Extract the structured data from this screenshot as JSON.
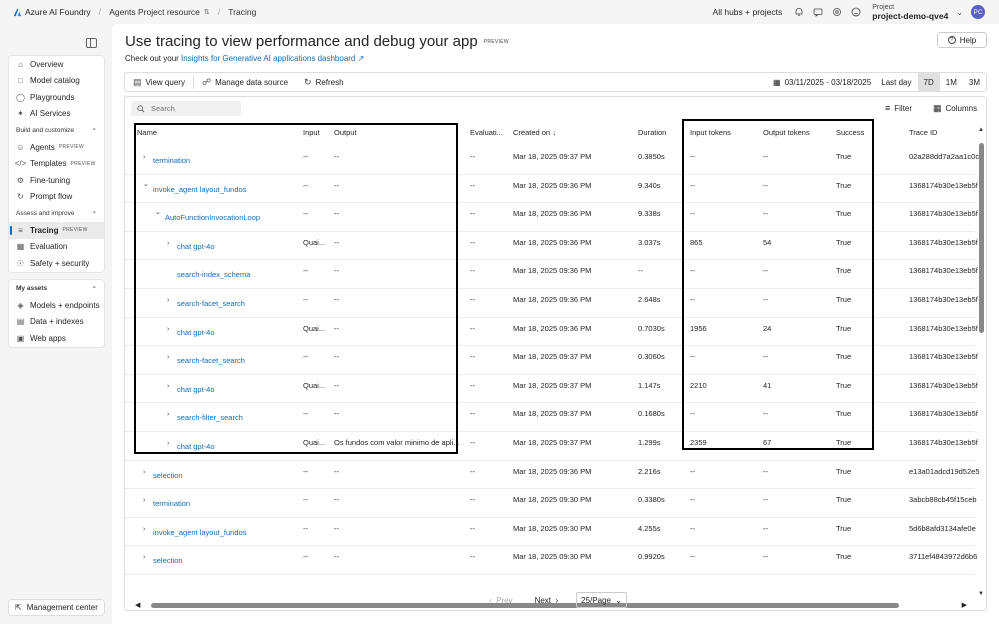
{
  "topbar": {
    "brand": "Azure AI Foundry",
    "resource": "Agents Project resource",
    "page": "Tracing",
    "hubs": "All hubs + projects",
    "project_label": "Project",
    "project_name": "project-demo-qve4",
    "avatar": "PC",
    "icons": [
      "bell-icon",
      "feedback-icon",
      "gear-icon",
      "smiley-icon"
    ]
  },
  "sidebar": {
    "top_items": [
      "Overview",
      "Model catalog",
      "Playgrounds",
      "AI Services"
    ],
    "build_header": "Build and customize",
    "build_items": [
      "Agents",
      "Templates",
      "Fine-tuning",
      "Prompt flow"
    ],
    "assess_header": "Assess and improve",
    "assess_items": [
      "Tracing",
      "Evaluation",
      "Safety + security"
    ],
    "assets_header": "My assets",
    "assets_items": [
      "Models + endpoints",
      "Data + indexes",
      "Web apps"
    ],
    "preview_badge": "PREVIEW",
    "management": "Management center"
  },
  "main": {
    "title": "Use tracing to view performance and debug your app",
    "title_badge": "PREVIEW",
    "subtitle_prefix": "Check out your",
    "subtitle_link": "Insights for Generative AI applications dashboard",
    "help": "Help"
  },
  "toolbar": {
    "view_query": "View query",
    "manage_data": "Manage data source",
    "refresh": "Refresh",
    "date_range": "03/11/2025 - 03/18/2025",
    "periods": [
      "Last day",
      "7D",
      "1M",
      "3M"
    ]
  },
  "grid": {
    "search_placeholder": "Search",
    "filter": "Filter",
    "columns_btn": "Columns",
    "headers": [
      "Name",
      "Input",
      "Output",
      "Evaluati...",
      "Created on ↓",
      "Duration",
      "Input tokens",
      "Output tokens",
      "Success",
      "Trace ID"
    ],
    "rows": [
      {
        "name": "termination",
        "input": "--",
        "output": "--",
        "eval": "--",
        "created": "Mar 18, 2025 09:37 PM",
        "duration": "0.3850s",
        "in_tok": "--",
        "out_tok": "--",
        "success": "True",
        "trace": "02a288dd7a2aa1c0c"
      },
      {
        "name": "invoke_agent layout_fundos",
        "input": "--",
        "output": "--",
        "eval": "--",
        "created": "Mar 18, 2025 09:36 PM",
        "duration": "9.340s",
        "in_tok": "--",
        "out_tok": "--",
        "success": "True",
        "trace": "1368174b30e13eb5f"
      },
      {
        "name": "AutoFunctionInvocationLoop",
        "input": "--",
        "output": "--",
        "eval": "--",
        "created": "Mar 18, 2025 09:36 PM",
        "duration": "9.338s",
        "in_tok": "--",
        "out_tok": "--",
        "success": "True",
        "trace": "1368174b30e13eb5f"
      },
      {
        "name": "chat gpt-4o",
        "input": "Quai...",
        "output": "--",
        "eval": "--",
        "created": "Mar 18, 2025 09:36 PM",
        "duration": "3.037s",
        "in_tok": "865",
        "out_tok": "54",
        "success": "True",
        "trace": "1368174b30e13eb5f"
      },
      {
        "name": "search-index_schema",
        "input": "--",
        "output": "--",
        "eval": "--",
        "created": "Mar 18, 2025 09:36 PM",
        "duration": "--",
        "in_tok": "--",
        "out_tok": "--",
        "success": "True",
        "trace": "1368174b30e13eb5f"
      },
      {
        "name": "search-facet_search",
        "input": "--",
        "output": "--",
        "eval": "--",
        "created": "Mar 18, 2025 09:36 PM",
        "duration": "2.648s",
        "in_tok": "--",
        "out_tok": "--",
        "success": "True",
        "trace": "1368174b30e13eb5f"
      },
      {
        "name": "chat gpt-4o",
        "input": "Quai...",
        "output": "--",
        "eval": "--",
        "created": "Mar 18, 2025 09:36 PM",
        "duration": "0.7030s",
        "in_tok": "1956",
        "out_tok": "24",
        "success": "True",
        "trace": "1368174b30e13eb5f"
      },
      {
        "name": "search-facet_search",
        "input": "--",
        "output": "--",
        "eval": "--",
        "created": "Mar 18, 2025 09:37 PM",
        "duration": "0.3060s",
        "in_tok": "--",
        "out_tok": "--",
        "success": "True",
        "trace": "1368174b30e13eb5f"
      },
      {
        "name": "chat gpt-4o",
        "input": "Quai...",
        "output": "--",
        "eval": "--",
        "created": "Mar 18, 2025 09:37 PM",
        "duration": "1.147s",
        "in_tok": "2210",
        "out_tok": "41",
        "success": "True",
        "trace": "1368174b30e13eb5f"
      },
      {
        "name": "search-filter_search",
        "input": "--",
        "output": "--",
        "eval": "--",
        "created": "Mar 18, 2025 09:37 PM",
        "duration": "0.1680s",
        "in_tok": "--",
        "out_tok": "--",
        "success": "True",
        "trace": "1368174b30e13eb5f"
      },
      {
        "name": "chat gpt-4o",
        "input": "Quai...",
        "output": "Os fundos com valor minimo de apli...",
        "eval": "--",
        "created": "Mar 18, 2025 09:37 PM",
        "duration": "1.299s",
        "in_tok": "2359",
        "out_tok": "67",
        "success": "True",
        "trace": "1368174b30e13eb5f"
      },
      {
        "name": "selection",
        "input": "--",
        "output": "--",
        "eval": "--",
        "created": "Mar 18, 2025 09:36 PM",
        "duration": "2.216s",
        "in_tok": "--",
        "out_tok": "--",
        "success": "True",
        "trace": "e13a01adcd19d52e5"
      },
      {
        "name": "termination",
        "input": "--",
        "output": "--",
        "eval": "--",
        "created": "Mar 18, 2025 09:30 PM",
        "duration": "0.3380s",
        "in_tok": "--",
        "out_tok": "--",
        "success": "True",
        "trace": "3abcb88cb45f15ceb"
      },
      {
        "name": "invoke_agent layout_fundos",
        "input": "--",
        "output": "--",
        "eval": "--",
        "created": "Mar 18, 2025 09:30 PM",
        "duration": "4.255s",
        "in_tok": "--",
        "out_tok": "--",
        "success": "True",
        "trace": "5d6b8afd3134afe0e"
      },
      {
        "name": "selection",
        "input": "--",
        "output": "--",
        "eval": "--",
        "created": "Mar 18, 2025 09:30 PM",
        "duration": "0.9920s",
        "in_tok": "--",
        "out_tok": "--",
        "success": "True",
        "trace": "3711ef4843972d6b6"
      }
    ]
  },
  "pager": {
    "prev": "Prev",
    "next": "Next",
    "page_size": "25/Page"
  }
}
